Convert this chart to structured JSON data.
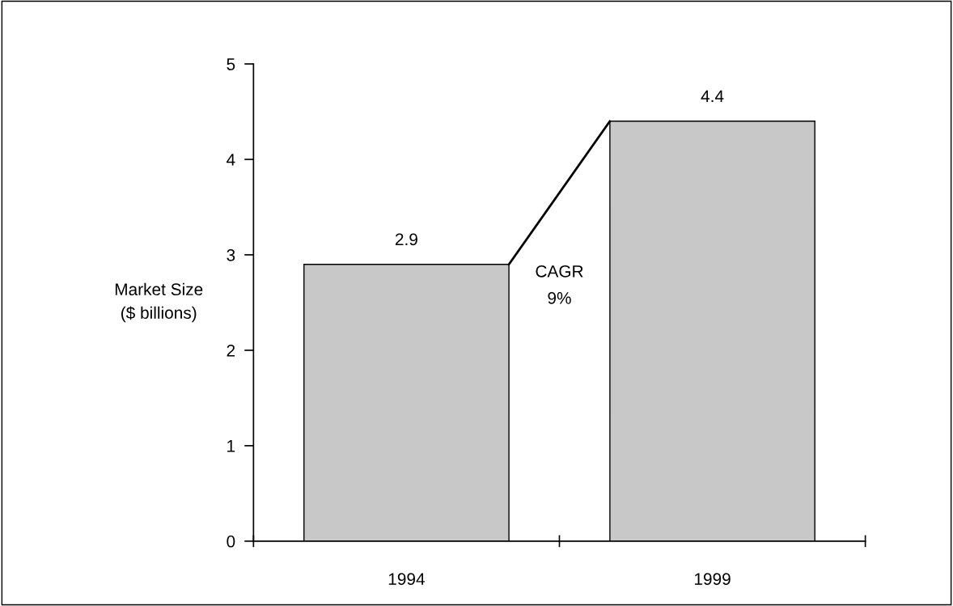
{
  "chart_data": {
    "type": "bar",
    "categories": [
      "1994",
      "1999"
    ],
    "values": [
      2.9,
      4.4
    ],
    "color": "#c8c8c8",
    "ylabel": "Market Size\n($ billions)",
    "ylim": [
      0,
      5
    ],
    "yticks": [
      0,
      1,
      2,
      3,
      4,
      5
    ],
    "data_labels": true,
    "grid": false,
    "legend": false,
    "annotations": [
      "CAGR\n9%"
    ]
  }
}
